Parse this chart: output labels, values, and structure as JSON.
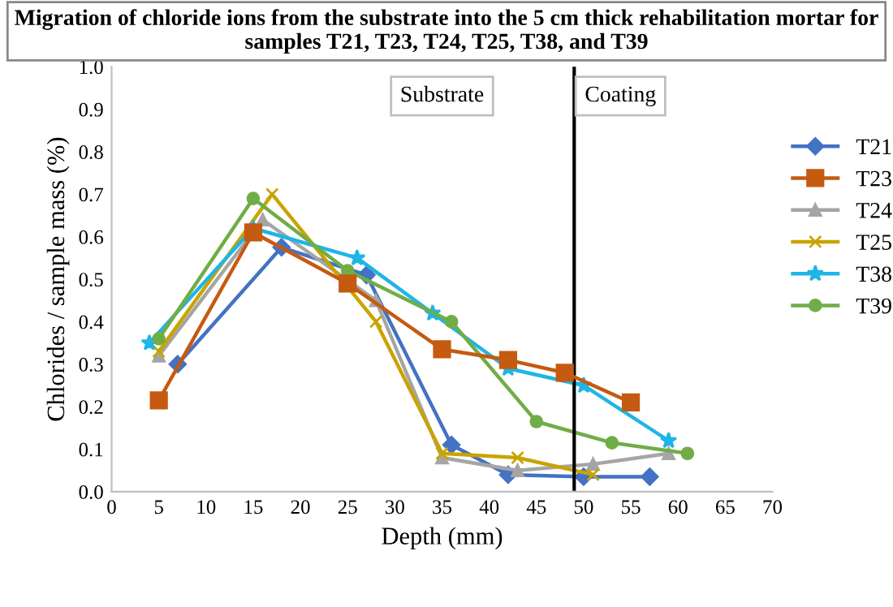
{
  "chart_data": {
    "type": "line",
    "title": "Migration of chloride ions from the substrate into the 5 cm thick rehabilitation mortar for samples T21, T23, T24, T25, T38, and T39",
    "xlabel": "Depth (mm)",
    "ylabel": "Chlorides / sample mass (%)",
    "xlim": [
      0,
      70
    ],
    "xticks": [
      0,
      5,
      10,
      15,
      20,
      25,
      30,
      35,
      40,
      45,
      50,
      55,
      60,
      65,
      70
    ],
    "ylim": [
      0,
      1.0
    ],
    "yticks": [
      {
        "value": 0,
        "label": "0.0"
      },
      0.1,
      0.2,
      0.3,
      0.4,
      0.5,
      0.6,
      0.7,
      0.8,
      0.9,
      {
        "value": 1.0,
        "label": "1.0"
      }
    ],
    "grid": false,
    "legend": "right",
    "ref_lines": [
      {
        "axis": "x",
        "value": 49,
        "color": "#000000"
      }
    ],
    "annotations": [
      "Substrate",
      "Coating"
    ],
    "series": [
      {
        "name": "T21",
        "color": "#4472c4",
        "marker": "diamond",
        "x": [
          7,
          18,
          27,
          36,
          42,
          50,
          57
        ],
        "values": [
          0.3,
          0.575,
          0.51,
          0.11,
          0.04,
          0.035,
          0.035
        ]
      },
      {
        "name": "T23",
        "color": "#c55a11",
        "marker": "square",
        "x": [
          5,
          15,
          25,
          35,
          42,
          48,
          55
        ],
        "values": [
          0.215,
          0.61,
          0.49,
          0.335,
          0.31,
          0.28,
          0.21
        ]
      },
      {
        "name": "T24",
        "color": "#a5a5a5",
        "marker": "triangle",
        "x": [
          5,
          16,
          28,
          35,
          43,
          51,
          59
        ],
        "values": [
          0.32,
          0.64,
          0.45,
          0.08,
          0.05,
          0.065,
          0.09
        ]
      },
      {
        "name": "T25",
        "color": "#c9a400",
        "marker": "cross",
        "x": [
          5,
          17,
          28,
          35,
          43,
          51
        ],
        "values": [
          0.33,
          0.7,
          0.4,
          0.09,
          0.08,
          0.04
        ]
      },
      {
        "name": "T38",
        "color": "#1fb5e6",
        "marker": "star",
        "x": [
          4,
          15,
          26,
          34,
          42,
          50,
          59
        ],
        "values": [
          0.35,
          0.62,
          0.55,
          0.42,
          0.29,
          0.25,
          0.12
        ]
      },
      {
        "name": "T39",
        "color": "#70ad47",
        "marker": "circle",
        "x": [
          5,
          15,
          25,
          36,
          45,
          53,
          61
        ],
        "values": [
          0.36,
          0.69,
          0.52,
          0.4,
          0.165,
          0.115,
          0.09
        ]
      }
    ]
  }
}
